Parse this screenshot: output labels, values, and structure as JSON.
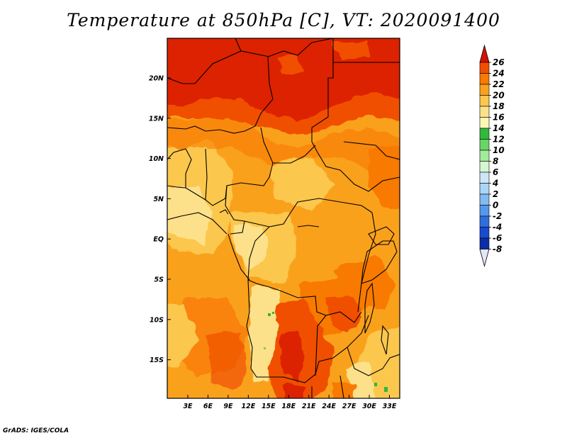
{
  "title": "Temperature at 850hPa [C], VT: 2020091400",
  "credit": "GrADS: IGES/COLA",
  "map": {
    "lat_labels": [
      "20N",
      "15N",
      "10N",
      "5N",
      "EQ",
      "5S",
      "10S",
      "15S"
    ],
    "lon_labels": [
      "3E",
      "6E",
      "9E",
      "12E",
      "15E",
      "18E",
      "21E",
      "24E",
      "27E",
      "30E",
      "33E"
    ],
    "colorbar": {
      "labels": [
        "26",
        "24",
        "22",
        "20",
        "18",
        "16",
        "14",
        "12",
        "10",
        "8",
        "6",
        "4",
        "2",
        "0",
        "-2",
        "-4",
        "-6",
        "-8"
      ],
      "colors": [
        "#dc2200",
        "#f04f00",
        "#f87a00",
        "#faa11e",
        "#fbc74e",
        "#fde18a",
        "#fbf8b6",
        "#2eba3a",
        "#67d667",
        "#a2eb98",
        "#d6f7d2",
        "#cce6f6",
        "#a9d6f4",
        "#81bbf0",
        "#5598ec",
        "#2d6fe0",
        "#184bd0",
        "#0a2da8",
        "#061a6e"
      ],
      "over_color": "#d51200",
      "under_color": "#e4e6f8"
    }
  }
}
